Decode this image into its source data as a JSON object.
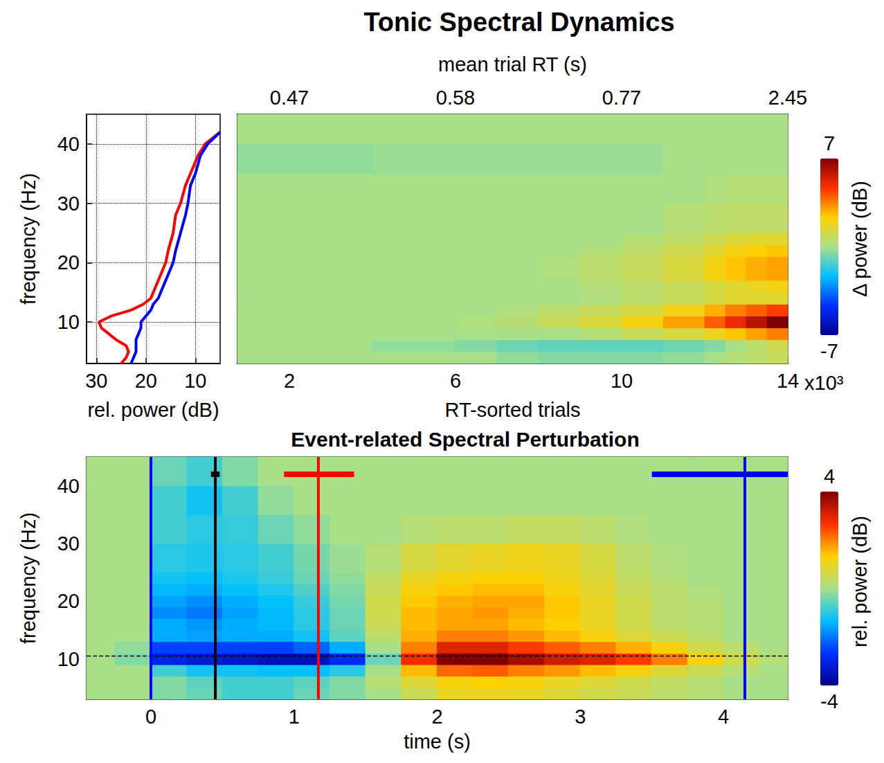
{
  "chart_data": [
    {
      "type": "line",
      "xlabel": "rel. power (dB)",
      "ylabel": "frequency (Hz)",
      "xlim": [
        32,
        5
      ],
      "xticks": [
        30,
        20,
        10
      ],
      "ylim": [
        3,
        45
      ],
      "yticks": [
        10,
        20,
        30,
        40
      ],
      "grid": true,
      "y": [
        3,
        4,
        5,
        6,
        7,
        8,
        9,
        10,
        11,
        12,
        13,
        14,
        16,
        18,
        20,
        22,
        25,
        28,
        30,
        33,
        35,
        38,
        40,
        42
      ],
      "series": [
        {
          "color": "#ff0000",
          "values": [
            25,
            24,
            23.5,
            24,
            26,
            27.5,
            29,
            29.5,
            27,
            23,
            20.5,
            19,
            18,
            17,
            16,
            15.5,
            14.5,
            14,
            13,
            12,
            11,
            9.5,
            8,
            5
          ]
        },
        {
          "color": "#0000ff",
          "values": [
            23,
            22.5,
            22,
            22,
            22,
            21.5,
            21,
            21,
            20,
            19,
            18.5,
            17.5,
            16.5,
            15.5,
            14.5,
            14,
            13,
            12,
            11.5,
            11,
            10,
            9,
            7.5,
            5
          ]
        }
      ]
    },
    {
      "type": "heatmap",
      "title": "Tonic Spectral Dynamics",
      "xlabel": "RT-sorted trials",
      "x_multiplier_label": "x10³",
      "x2label": "mean trial RT (s)",
      "xlim": [
        0.75,
        14
      ],
      "xticks": [
        2,
        6,
        10,
        14
      ],
      "x2ticks": [
        {
          "value": 2,
          "label": "0.47"
        },
        {
          "value": 6,
          "label": "0.58"
        },
        {
          "value": 10,
          "label": "0.77"
        },
        {
          "value": 14,
          "label": "2.45"
        }
      ],
      "ylim": [
        3,
        45
      ],
      "tick_labels": "x",
      "x_edges": [
        0.75,
        2,
        3,
        4,
        5,
        6,
        7,
        8,
        9,
        10,
        11,
        12,
        12.5,
        13,
        13.5,
        14
      ],
      "y_edges": [
        3,
        5,
        7,
        9,
        11,
        13,
        15,
        17,
        19,
        21,
        23,
        25,
        30,
        35,
        40,
        45
      ],
      "cells": [
        [
          0,
          0,
          0,
          0,
          0,
          0,
          -0.3,
          -0.5,
          -0.5,
          -0.5,
          -0.3,
          0,
          0.3,
          0.5,
          0.8
        ],
        [
          0,
          0,
          0,
          -0.3,
          -0.3,
          -0.5,
          -0.8,
          -1,
          -1,
          -1,
          -0.8,
          -0.5,
          0,
          0.5,
          1
        ],
        [
          0,
          0,
          0,
          0,
          0,
          0,
          0,
          0,
          0.3,
          0.8,
          1.2,
          1.8,
          2.5,
          3,
          3.5
        ],
        [
          0,
          0,
          0,
          0,
          0,
          0.2,
          0.4,
          0.8,
          1.3,
          2,
          3,
          4,
          5,
          6,
          7
        ],
        [
          0,
          0,
          0,
          0,
          0,
          0,
          0.2,
          0.5,
          0.8,
          1.2,
          2,
          2.8,
          3.5,
          4,
          4.5
        ],
        [
          0,
          0,
          0,
          0,
          0,
          0,
          0,
          0,
          0.2,
          0.5,
          0.8,
          1.2,
          1.5,
          1.5,
          1.5
        ],
        [
          0,
          0,
          0,
          0,
          0,
          0,
          0,
          0,
          0.3,
          0.5,
          0.8,
          1.2,
          1.5,
          1.8,
          2
        ],
        [
          0,
          0,
          0,
          0,
          0,
          0,
          0,
          0.2,
          0.5,
          0.8,
          1.3,
          2,
          2.5,
          2.8,
          3
        ],
        [
          0,
          0,
          0,
          0,
          0,
          0,
          0,
          0.2,
          0.5,
          0.8,
          1.3,
          2,
          2.5,
          2.8,
          3
        ],
        [
          0,
          0,
          0,
          0,
          0,
          0,
          0,
          0,
          0.3,
          0.6,
          1,
          1.5,
          2,
          2.3,
          2.5
        ],
        [
          0,
          0,
          0,
          0,
          0,
          0,
          0,
          0,
          0,
          0.3,
          0.6,
          1,
          1.3,
          1.5,
          1.5
        ],
        [
          0,
          0,
          0,
          0,
          0,
          0,
          0,
          0,
          0,
          0,
          0.3,
          0.5,
          0.6,
          0.6,
          0.6
        ],
        [
          0,
          0,
          0,
          0,
          0,
          0,
          0,
          0,
          0,
          0,
          0,
          0.2,
          0.3,
          0.3,
          0.3
        ],
        [
          -0.3,
          -0.3,
          -0.3,
          -0.2,
          -0.2,
          -0.2,
          -0.2,
          -0.2,
          -0.2,
          -0.2,
          0,
          0,
          0,
          0,
          0
        ],
        [
          0,
          0,
          0,
          0,
          0,
          0,
          0,
          0,
          0,
          0,
          0,
          0,
          0,
          0,
          0
        ]
      ],
      "colorbar": {
        "label": "Δ power (dB)",
        "range": [
          -7,
          7
        ],
        "ticks": [
          -7,
          7
        ]
      }
    },
    {
      "type": "heatmap",
      "title": "Event-related Spectral Perturbation",
      "xlabel": "time (s)",
      "ylabel": "frequency (Hz)",
      "xlim": [
        -0.45,
        4.45
      ],
      "xticks": [
        0,
        1,
        2,
        3,
        4
      ],
      "ylim": [
        3,
        45
      ],
      "yticks": [
        10,
        20,
        30,
        40
      ],
      "x_edges": [
        -0.45,
        -0.25,
        0,
        0.25,
        0.5,
        0.75,
        1,
        1.25,
        1.5,
        1.75,
        2,
        2.25,
        2.5,
        2.75,
        3,
        3.25,
        3.5,
        3.75,
        4,
        4.25,
        4.45
      ],
      "y_edges": [
        3,
        5,
        7,
        9,
        11,
        13,
        15,
        17,
        19,
        21,
        23,
        25,
        30,
        35,
        40,
        45
      ],
      "cells": [
        [
          0,
          0,
          -0.3,
          -0.5,
          -0.8,
          -0.8,
          -0.5,
          -0.3,
          0,
          0.5,
          1,
          1,
          1,
          0.8,
          0.6,
          0.5,
          0.3,
          0.2,
          0,
          0
        ],
        [
          0,
          0,
          -0.3,
          -0.6,
          -0.8,
          -0.8,
          -0.6,
          -0.3,
          0.2,
          0.8,
          1.2,
          1.3,
          1.2,
          1,
          0.8,
          0.6,
          0.4,
          0.2,
          0,
          0
        ],
        [
          0,
          0,
          -0.8,
          -1.2,
          -1.2,
          -1.3,
          -1.3,
          -1,
          0,
          1.5,
          2.2,
          2.3,
          2,
          1.8,
          1.5,
          1.2,
          0.8,
          0.5,
          0.2,
          0
        ],
        [
          0,
          -0.3,
          -3,
          -3.2,
          -3.3,
          -3.5,
          -3.5,
          -2.8,
          -0.5,
          2.8,
          4,
          4,
          3.6,
          3.2,
          3,
          2.6,
          2,
          1.2,
          0.6,
          0.2
        ],
        [
          0,
          -0.2,
          -2.5,
          -2.5,
          -2.5,
          -2.5,
          -2.2,
          -1.5,
          0,
          2,
          3,
          3,
          2.6,
          2.3,
          2,
          1.6,
          1.2,
          0.6,
          0.3,
          0
        ],
        [
          0,
          0,
          -1.5,
          -1.6,
          -1.5,
          -1.5,
          -1.2,
          -0.6,
          0.3,
          1.6,
          2,
          2,
          1.8,
          1.5,
          1.2,
          0.8,
          0.5,
          0.3,
          0,
          0
        ],
        [
          0,
          0,
          -1.5,
          -1.7,
          -1.5,
          -1.4,
          -1,
          -0.5,
          0.5,
          1.5,
          1.7,
          1.7,
          1.5,
          1.3,
          1,
          0.6,
          0.3,
          0.2,
          0,
          0
        ],
        [
          0,
          0,
          -1.8,
          -2,
          -1.6,
          -1.4,
          -1,
          -0.5,
          0.6,
          1.5,
          1.7,
          1.8,
          1.6,
          1.4,
          1,
          0.6,
          0.3,
          0.2,
          0,
          0
        ],
        [
          0,
          0,
          -1.6,
          -1.8,
          -1.5,
          -1.3,
          -0.9,
          -0.4,
          0.6,
          1.4,
          1.6,
          1.7,
          1.7,
          1.4,
          1,
          0.6,
          0.3,
          0.2,
          0,
          0
        ],
        [
          0,
          0,
          -1.4,
          -1.5,
          -1.3,
          -1.1,
          -0.7,
          -0.3,
          0.5,
          1.2,
          1.4,
          1.5,
          1.5,
          1.2,
          0.9,
          0.5,
          0.3,
          0.1,
          0,
          0
        ],
        [
          0,
          0,
          -1.2,
          -1.3,
          -1.1,
          -0.9,
          -0.5,
          -0.2,
          0.4,
          1,
          1.2,
          1.3,
          1.3,
          1.1,
          0.8,
          0.4,
          0.2,
          0,
          0,
          0
        ],
        [
          0,
          0,
          -1,
          -1.1,
          -1,
          -0.8,
          -0.4,
          -0.1,
          0.2,
          0.7,
          0.9,
          1,
          1.1,
          1,
          0.7,
          0.3,
          0.1,
          0,
          0,
          0
        ],
        [
          0,
          0,
          -0.8,
          -1,
          -0.9,
          -0.5,
          -0.2,
          0,
          0,
          0.2,
          0.3,
          0.3,
          0.4,
          0.4,
          0.3,
          0.1,
          0,
          0,
          0,
          0
        ],
        [
          0,
          0,
          -0.8,
          -1.2,
          -0.8,
          -0.2,
          0,
          0,
          0,
          0,
          0,
          0,
          0,
          0,
          0,
          0,
          0,
          0,
          0,
          0
        ],
        [
          0,
          0,
          -0.5,
          -0.8,
          -0.3,
          0,
          0,
          0,
          0,
          0,
          0,
          0,
          0,
          0,
          0,
          0,
          0,
          0,
          0,
          0
        ]
      ],
      "colorbar": {
        "label": "rel. power (dB)",
        "range": [
          -4,
          4
        ],
        "ticks": [
          -4,
          4
        ]
      },
      "reference_frequency": 10.5,
      "marker_error_frequency": 42,
      "markers": [
        {
          "x": 0,
          "color": "#0000ff"
        },
        {
          "x": 0.45,
          "color": "#000000",
          "error": [
            0.42,
            0.48
          ]
        },
        {
          "x": 1.17,
          "color": "#ff0000",
          "error": [
            0.93,
            1.42
          ]
        },
        {
          "x": 4.15,
          "color": "#0000ff",
          "error": [
            3.5,
            4.45
          ]
        }
      ]
    }
  ]
}
